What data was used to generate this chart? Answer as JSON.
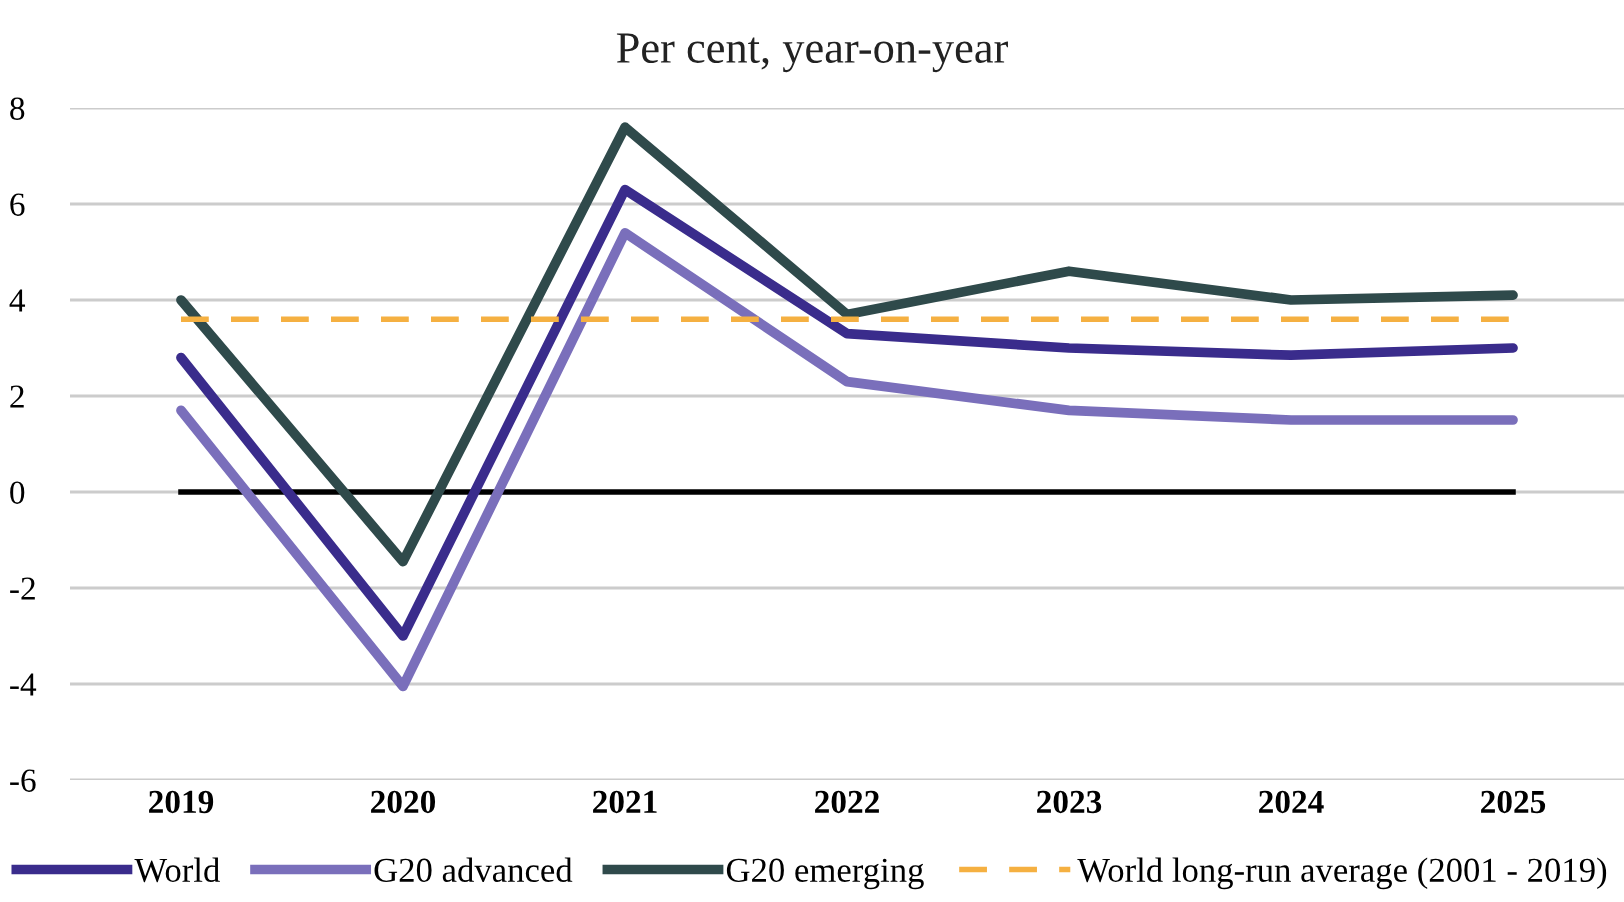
{
  "chart_data": {
    "type": "line",
    "title": "Per cent, year-on-year",
    "categories": [
      "2019",
      "2020",
      "2021",
      "2022",
      "2023",
      "2024",
      "2025"
    ],
    "series": [
      {
        "name": "World",
        "color": "#3a2c8c",
        "values": [
          2.8,
          -3.0,
          6.3,
          3.3,
          3.0,
          2.85,
          3.0
        ]
      },
      {
        "name": "G20 advanced",
        "color": "#7a6fbb",
        "values": [
          1.7,
          -4.05,
          5.4,
          2.3,
          1.7,
          1.5,
          1.5
        ]
      },
      {
        "name": "G20 emerging",
        "color": "#2f4a4b",
        "values": [
          4.0,
          -1.45,
          7.6,
          3.7,
          4.6,
          4.0,
          4.1
        ]
      },
      {
        "name": "World long-run average (2001 - 2019)",
        "color": "#f5b041",
        "line_style": "dashed",
        "values": [
          3.6,
          3.6,
          3.6,
          3.6,
          3.6,
          3.6,
          3.6
        ]
      }
    ],
    "ref_lines": [
      {
        "axis": "y",
        "value": 0,
        "color": "#000000"
      }
    ],
    "ylim": [
      -6,
      8
    ],
    "yticks": [
      -6,
      -4,
      -2,
      0,
      2,
      4,
      6,
      8
    ],
    "grid": "y",
    "legend": "bottom",
    "marker": "none",
    "line_style": "solid"
  }
}
